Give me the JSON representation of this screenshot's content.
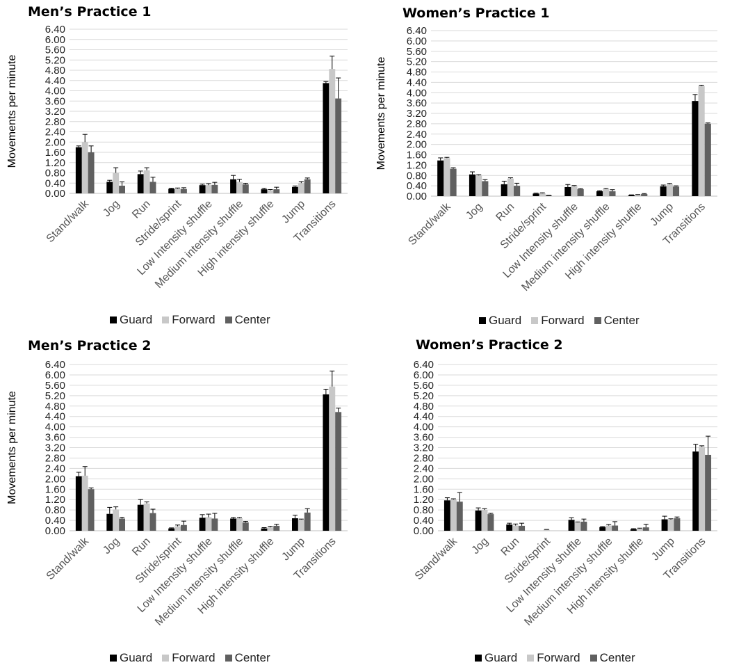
{
  "colors": {
    "guard": "#000000",
    "forward": "#c8c8c8",
    "center": "#606060",
    "grid": "#d9d9d9"
  },
  "legend": [
    "Guard",
    "Forward",
    "Center"
  ],
  "chart_data": [
    {
      "type": "bar",
      "title": "Men’s Practice 1",
      "ylabel": "Movements per minute",
      "ylim": [
        0,
        6.4
      ],
      "yticks": [
        "0.00",
        "0.40",
        "0.80",
        "1.20",
        "1.60",
        "2.00",
        "2.40",
        "2.80",
        "3.20",
        "3.60",
        "4.00",
        "4.40",
        "4.80",
        "5.20",
        "5.60",
        "6.00",
        "6.40"
      ],
      "categories": [
        "Stand/walk",
        "Jog",
        "Run",
        "Stride/sprint",
        "Low Intensity shuffle",
        "Medium intensity shuffle",
        "High intensity shuffle",
        "Jump",
        "Transitions"
      ],
      "series": [
        {
          "name": "Guard",
          "values": [
            1.8,
            0.45,
            0.75,
            0.18,
            0.32,
            0.55,
            0.16,
            0.25,
            4.3
          ],
          "errors": [
            0.05,
            0.06,
            0.12,
            0.02,
            0.04,
            0.15,
            0.04,
            0.04,
            0.06
          ]
        },
        {
          "name": "Forward",
          "values": [
            2.0,
            0.8,
            0.9,
            0.18,
            0.32,
            0.45,
            0.12,
            0.4,
            4.85
          ],
          "errors": [
            0.3,
            0.2,
            0.1,
            0.03,
            0.06,
            0.1,
            0.03,
            0.06,
            0.5
          ]
        },
        {
          "name": "Center",
          "values": [
            1.6,
            0.3,
            0.45,
            0.17,
            0.33,
            0.35,
            0.16,
            0.55,
            3.7
          ],
          "errors": [
            0.25,
            0.15,
            0.18,
            0.05,
            0.1,
            0.04,
            0.08,
            0.05,
            0.8
          ]
        }
      ]
    },
    {
      "type": "bar",
      "title": "Women’s Practice 1",
      "ylabel": "Movements per minute",
      "ylim": [
        0,
        6.4
      ],
      "yticks": [
        "0.00",
        "0.40",
        "0.80",
        "1.20",
        "1.60",
        "2.00",
        "2.40",
        "2.80",
        "3.20",
        "3.60",
        "4.00",
        "4.40",
        "4.80",
        "5.20",
        "5.60",
        "6.00",
        "6.40"
      ],
      "categories": [
        "Stand/walk",
        "Jog",
        "Run",
        "Stride/sprint",
        "Low Intensity shuffle",
        "Medium intensity shuffle",
        "High intensity shuffle",
        "Jump",
        "Transitions"
      ],
      "series": [
        {
          "name": "Guard",
          "values": [
            1.38,
            0.84,
            0.46,
            0.1,
            0.35,
            0.19,
            0.04,
            0.38,
            3.68
          ],
          "errors": [
            0.1,
            0.1,
            0.12,
            0.02,
            0.1,
            0.02,
            0.01,
            0.05,
            0.25
          ]
        },
        {
          "name": "Forward",
          "values": [
            1.47,
            0.8,
            0.68,
            0.11,
            0.38,
            0.27,
            0.05,
            0.46,
            4.26
          ],
          "errors": [
            0.03,
            0.03,
            0.03,
            0.02,
            0.03,
            0.03,
            0.01,
            0.03,
            0.03
          ]
        },
        {
          "name": "Center",
          "values": [
            1.06,
            0.58,
            0.4,
            0.03,
            0.27,
            0.19,
            0.08,
            0.37,
            2.8
          ],
          "errors": [
            0.04,
            0.06,
            0.1,
            0.01,
            0.02,
            0.06,
            0.02,
            0.03,
            0.03
          ]
        }
      ]
    },
    {
      "type": "bar",
      "title": "Men’s Practice 2",
      "ylabel": "Movements per minute",
      "ylim": [
        0,
        6.4
      ],
      "yticks": [
        "0.00",
        "0.40",
        "0.80",
        "1.20",
        "1.60",
        "2.00",
        "2.40",
        "2.80",
        "3.20",
        "3.60",
        "4.00",
        "4.40",
        "4.80",
        "5.20",
        "5.60",
        "6.00",
        "6.40"
      ],
      "categories": [
        "Stand/walk",
        "Jog",
        "Run",
        "Stride/sprint",
        "Low Intensity shuffle",
        "Medium intensity shuffle",
        "High intensity shuffle",
        "Jump",
        "Transitions"
      ],
      "series": [
        {
          "name": "Guard",
          "values": [
            2.1,
            0.65,
            1.0,
            0.09,
            0.5,
            0.47,
            0.09,
            0.48,
            5.25
          ],
          "errors": [
            0.15,
            0.25,
            0.2,
            0.02,
            0.12,
            0.04,
            0.03,
            0.12,
            0.2
          ]
        },
        {
          "name": "Forward",
          "values": [
            2.12,
            0.82,
            1.05,
            0.17,
            0.52,
            0.48,
            0.13,
            0.43,
            5.55
          ],
          "errors": [
            0.35,
            0.1,
            0.06,
            0.05,
            0.12,
            0.03,
            0.04,
            0.02,
            0.6
          ]
        },
        {
          "name": "Center",
          "values": [
            1.6,
            0.47,
            0.68,
            0.22,
            0.47,
            0.32,
            0.19,
            0.7,
            4.57
          ],
          "errors": [
            0.05,
            0.05,
            0.15,
            0.15,
            0.2,
            0.04,
            0.06,
            0.15,
            0.15
          ]
        }
      ]
    },
    {
      "type": "bar",
      "title": "Women’s Practice 2",
      "ylabel": "",
      "ylim": [
        0,
        6.4
      ],
      "yticks": [
        "0.00",
        "0.40",
        "0.80",
        "1.20",
        "1.60",
        "2.00",
        "2.40",
        "2.80",
        "3.20",
        "3.60",
        "4.00",
        "4.40",
        "4.80",
        "5.20",
        "5.60",
        "6.00",
        "6.40"
      ],
      "categories": [
        "Stand/walk",
        "Jog",
        "Run",
        "Stride/sprint",
        "Low Intensity shuffle",
        "Medium intensity shuffle",
        "High intensity shuffle",
        "Jump",
        "Transitions"
      ],
      "series": [
        {
          "name": "Guard",
          "values": [
            1.17,
            0.78,
            0.24,
            0.0,
            0.42,
            0.14,
            0.06,
            0.44,
            3.05
          ],
          "errors": [
            0.1,
            0.1,
            0.05,
            0.0,
            0.08,
            0.02,
            0.02,
            0.12,
            0.28
          ]
        },
        {
          "name": "Forward",
          "values": [
            1.2,
            0.8,
            0.2,
            0.04,
            0.32,
            0.2,
            0.08,
            0.43,
            3.23
          ],
          "errors": [
            0.03,
            0.05,
            0.06,
            0.01,
            0.02,
            0.04,
            0.02,
            0.03,
            0.04
          ]
        },
        {
          "name": "Center",
          "values": [
            1.12,
            0.64,
            0.19,
            0.0,
            0.35,
            0.2,
            0.13,
            0.48,
            2.92
          ],
          "errors": [
            0.35,
            0.03,
            0.1,
            0.0,
            0.1,
            0.15,
            0.12,
            0.05,
            0.72
          ]
        }
      ]
    }
  ]
}
